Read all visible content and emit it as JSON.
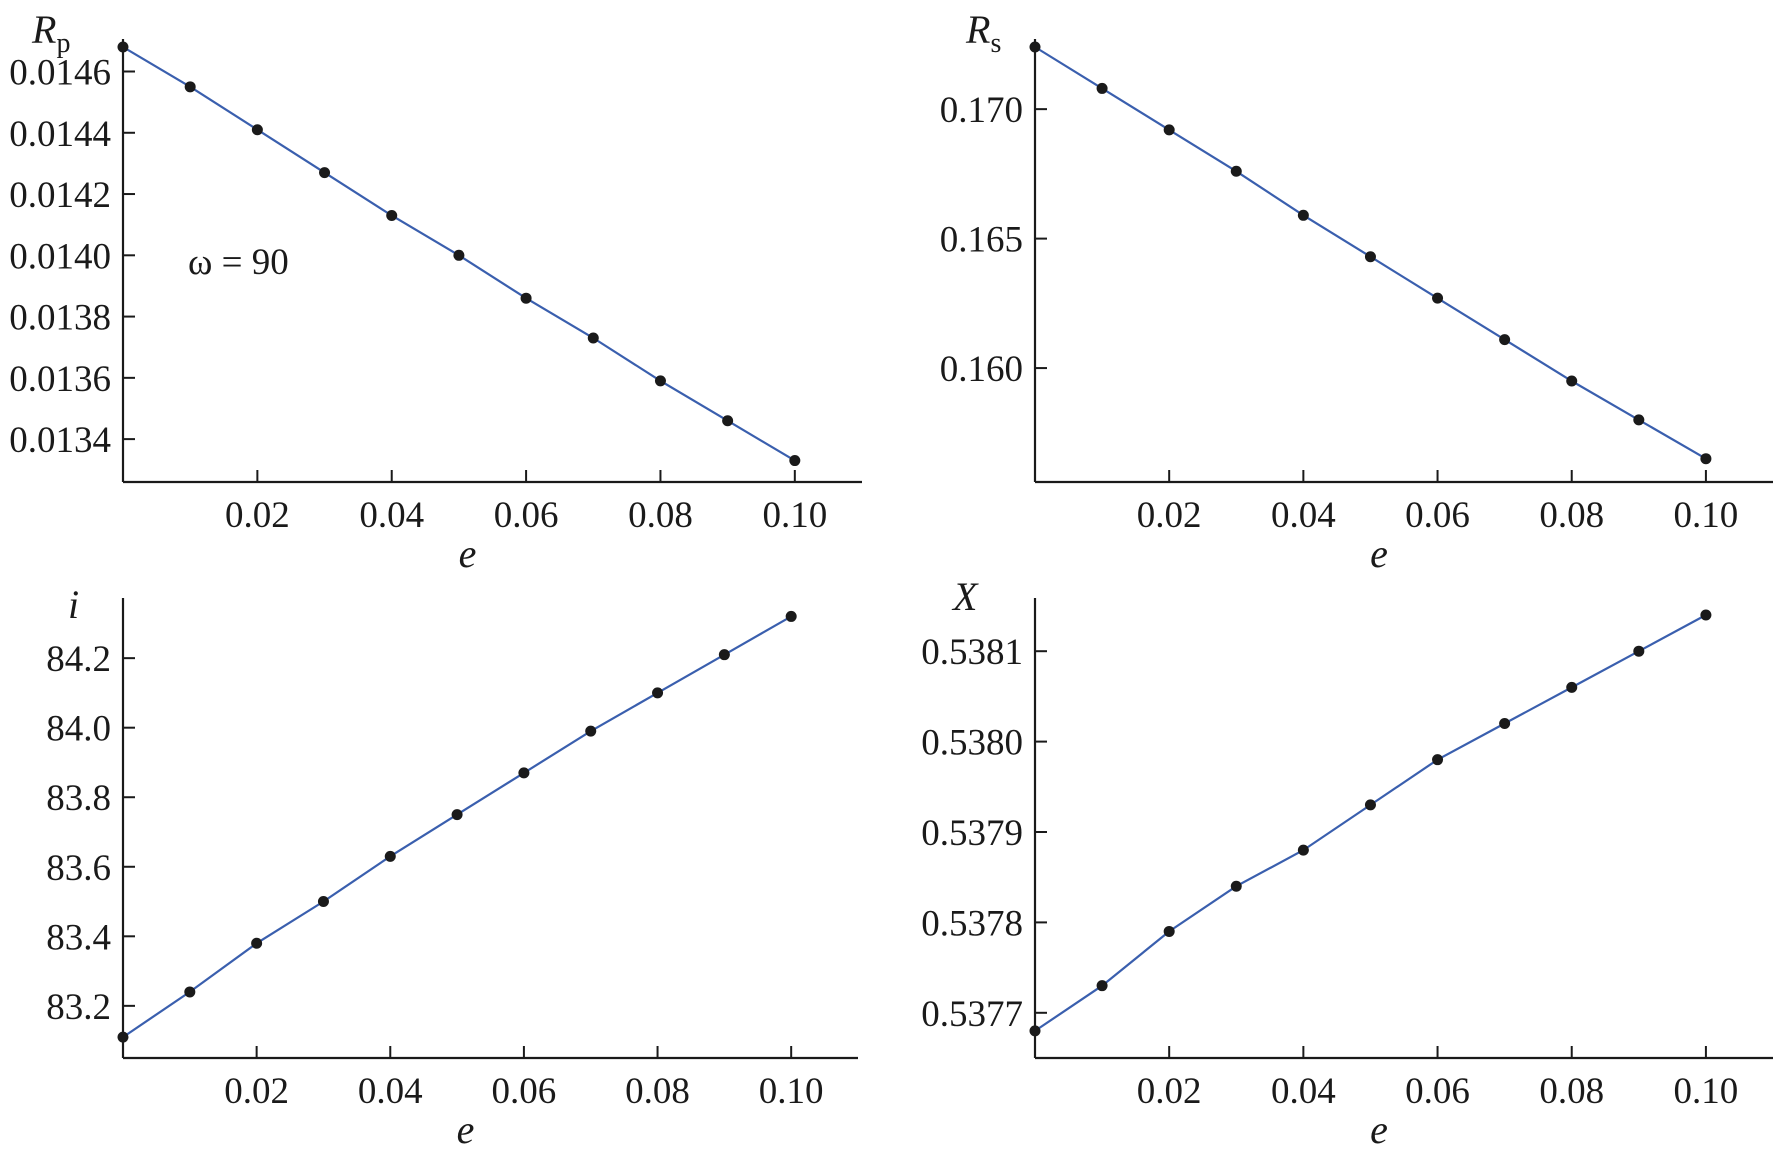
{
  "chart_data": [
    {
      "type": "line",
      "ylabel": "R",
      "ylabel_sub": "p",
      "xlabel": "e",
      "annotation": "ω = 90",
      "x": [
        0.0,
        0.01,
        0.02,
        0.03,
        0.04,
        0.05,
        0.06,
        0.07,
        0.08,
        0.09,
        0.1
      ],
      "y": [
        0.01468,
        0.01455,
        0.01441,
        0.01427,
        0.01413,
        0.014,
        0.01386,
        0.01373,
        0.01359,
        0.01346,
        0.01333
      ],
      "xlim": [
        0.0,
        0.11
      ],
      "ylim": [
        0.01326,
        0.01468
      ],
      "xticks": [
        "0.02",
        "0.04",
        "0.06",
        "0.08",
        "0.10"
      ],
      "xtick_values": [
        0.02,
        0.04,
        0.06,
        0.08,
        0.1
      ],
      "yticks": [
        "0.0134",
        "0.0136",
        "0.0138",
        "0.0140",
        "0.0142",
        "0.0144",
        "0.0146"
      ],
      "ytick_values": [
        0.0134,
        0.0136,
        0.0138,
        0.014,
        0.0142,
        0.0144,
        0.0146
      ],
      "line_color": "#3a5fae",
      "marker_color": "#1a1a1a"
    },
    {
      "type": "line",
      "ylabel": "R",
      "ylabel_sub": "s",
      "xlabel": "e",
      "x": [
        0.0,
        0.01,
        0.02,
        0.03,
        0.04,
        0.05,
        0.06,
        0.07,
        0.08,
        0.09,
        0.1
      ],
      "y": [
        0.1724,
        0.1708,
        0.1692,
        0.1676,
        0.1659,
        0.1643,
        0.1627,
        0.1611,
        0.1595,
        0.158,
        0.1565
      ],
      "xlim": [
        0.0,
        0.11
      ],
      "ylim": [
        0.1556,
        0.1724
      ],
      "xticks": [
        "0.02",
        "0.04",
        "0.06",
        "0.08",
        "0.10"
      ],
      "xtick_values": [
        0.02,
        0.04,
        0.06,
        0.08,
        0.1
      ],
      "yticks": [
        "0.160",
        "0.165",
        "0.170"
      ],
      "ytick_values": [
        0.16,
        0.165,
        0.17
      ],
      "line_color": "#3a5fae",
      "marker_color": "#1a1a1a"
    },
    {
      "type": "line",
      "ylabel": "i",
      "ylabel_sub": "",
      "xlabel": "e",
      "x": [
        0.0,
        0.01,
        0.02,
        0.03,
        0.04,
        0.05,
        0.06,
        0.07,
        0.08,
        0.09,
        0.1
      ],
      "y": [
        83.11,
        83.24,
        83.38,
        83.5,
        83.63,
        83.75,
        83.87,
        83.99,
        84.1,
        84.21,
        84.32
      ],
      "xlim": [
        0.0,
        0.11
      ],
      "ylim": [
        83.05,
        84.35
      ],
      "xticks": [
        "0.02",
        "0.04",
        "0.06",
        "0.08",
        "0.10"
      ],
      "xtick_values": [
        0.02,
        0.04,
        0.06,
        0.08,
        0.1
      ],
      "yticks": [
        "83.2",
        "83.4",
        "83.6",
        "83.8",
        "84.0",
        "84.2"
      ],
      "ytick_values": [
        83.2,
        83.4,
        83.6,
        83.8,
        84.0,
        84.2
      ],
      "line_color": "#3a5fae",
      "marker_color": "#1a1a1a"
    },
    {
      "type": "line",
      "ylabel": "X",
      "ylabel_sub": "",
      "xlabel": "e",
      "x": [
        0.0,
        0.01,
        0.02,
        0.03,
        0.04,
        0.05,
        0.06,
        0.07,
        0.08,
        0.09,
        0.1
      ],
      "y": [
        0.53768,
        0.53773,
        0.53779,
        0.53784,
        0.53788,
        0.53793,
        0.53798,
        0.53802,
        0.53806,
        0.5381,
        0.53814
      ],
      "xlim": [
        0.0,
        0.11
      ],
      "ylim": [
        0.53765,
        0.53815
      ],
      "xticks": [
        "0.02",
        "0.04",
        "0.06",
        "0.08",
        "0.10"
      ],
      "xtick_values": [
        0.02,
        0.04,
        0.06,
        0.08,
        0.1
      ],
      "yticks": [
        "0.5377",
        "0.5378",
        "0.5379",
        "0.5380",
        "0.5381"
      ],
      "ytick_values": [
        0.5377,
        0.5378,
        0.5379,
        0.538,
        0.5381
      ],
      "line_color": "#3a5fae",
      "marker_color": "#1a1a1a"
    }
  ]
}
